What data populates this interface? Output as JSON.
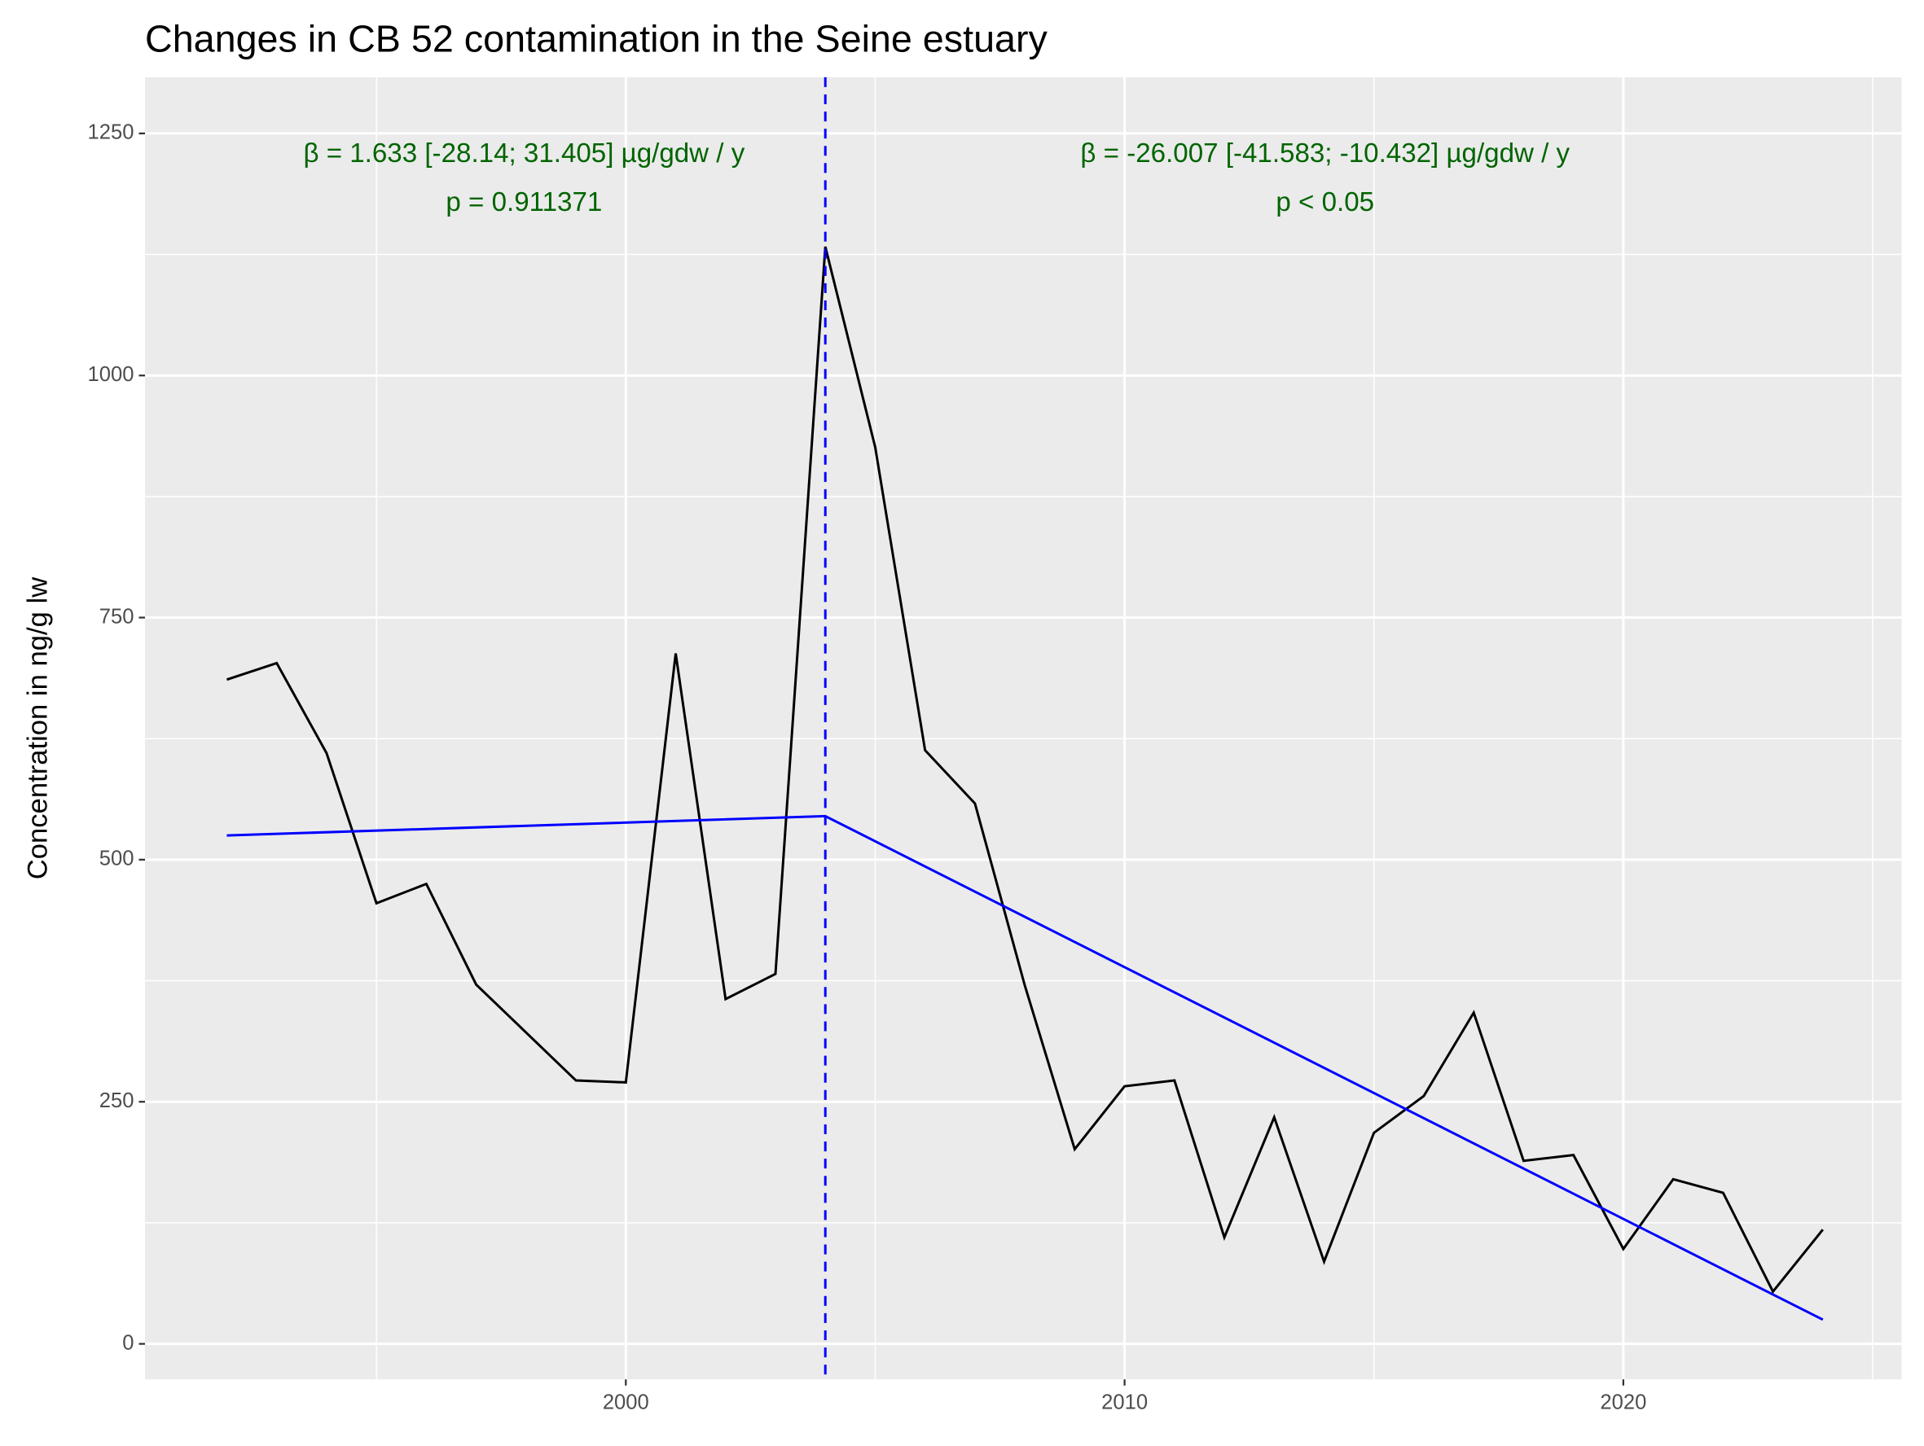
{
  "chart_data": {
    "type": "line",
    "title": "Changes in CB 52 contamination in the Seine estuary",
    "ylabel": "Concentration in ng/g lw",
    "x": [
      1992,
      1993,
      1994,
      1995,
      1996,
      1997,
      1999,
      2000,
      2001,
      2002,
      2003,
      2004,
      2005,
      2006,
      2007,
      2008,
      2009,
      2010,
      2011,
      2012,
      2013,
      2014,
      2015,
      2016,
      2017,
      2018,
      2019,
      2020,
      2021,
      2022,
      2023,
      2024
    ],
    "values": [
      686,
      703,
      610,
      455,
      475,
      371,
      272,
      270,
      713,
      356,
      382,
      1133,
      926,
      613,
      558,
      370,
      201,
      266,
      272,
      110,
      234,
      85,
      218,
      256,
      342,
      189,
      195,
      98,
      170,
      156,
      54,
      118
    ],
    "color": "#000000",
    "trend": {
      "x": [
        1992,
        2004,
        2024
      ],
      "values": [
        525,
        545,
        25
      ],
      "color": "#0000ff"
    },
    "breakpoint": {
      "x": 2004,
      "color": "#0000ff"
    },
    "annotations": [
      [
        "β = 1.633 [-28.14; 31.405] µg/gdw / y",
        "p = 0.911371"
      ],
      [
        "β = -26.007 [-41.583; -10.432] µg/gdw / y",
        "p < 0.05"
      ]
    ],
    "annotation_color": "#006400",
    "xlim": [
      1990.36,
      2025.58
    ],
    "xticks": [
      2000,
      2010,
      2020
    ],
    "ylim": [
      -36.7,
      1308
    ],
    "yticks": [
      0,
      250,
      500,
      750,
      1000,
      1250
    ],
    "grid": true
  }
}
